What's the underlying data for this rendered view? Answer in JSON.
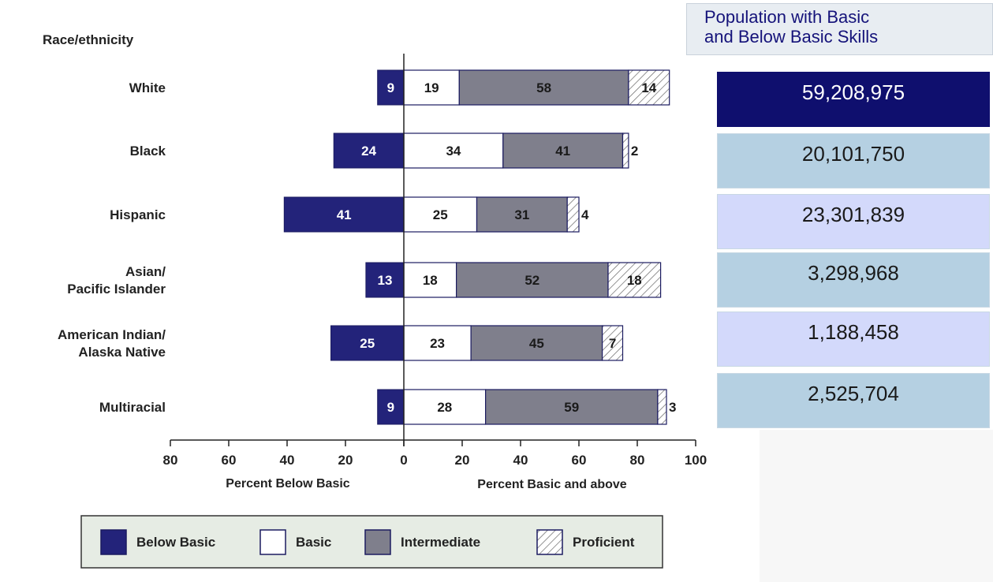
{
  "chart_data": {
    "type": "bar",
    "orientation": "horizontal-diverging",
    "category_header": "Race/ethnicity",
    "categories": [
      [
        "White"
      ],
      [
        "Black"
      ],
      [
        "Hispanic"
      ],
      [
        "Asian/",
        "Pacific Islander"
      ],
      [
        "American Indian/",
        "Alaska Native"
      ],
      [
        "Multiracial"
      ]
    ],
    "series": [
      {
        "name": "Below Basic",
        "values": [
          9,
          24,
          41,
          13,
          25,
          9
        ],
        "direction": "left",
        "color": "#23237a"
      },
      {
        "name": "Basic",
        "values": [
          19,
          34,
          25,
          18,
          23,
          28
        ],
        "direction": "right",
        "color": "#ffffff"
      },
      {
        "name": "Intermediate",
        "values": [
          58,
          41,
          31,
          52,
          45,
          59
        ],
        "direction": "right",
        "color": "#7f7f8c"
      },
      {
        "name": "Proficient",
        "values": [
          14,
          2,
          4,
          18,
          7,
          3
        ],
        "direction": "right",
        "color": "hatched"
      }
    ],
    "xlim": [
      -80,
      100
    ],
    "x_ticks": [
      {
        "value": -80,
        "label": "80"
      },
      {
        "value": -60,
        "label": "60"
      },
      {
        "value": -40,
        "label": "40"
      },
      {
        "value": -20,
        "label": "20"
      },
      {
        "value": 0,
        "label": "0"
      },
      {
        "value": 20,
        "label": "20"
      },
      {
        "value": 40,
        "label": "40"
      },
      {
        "value": 60,
        "label": "60"
      },
      {
        "value": 80,
        "label": "80"
      },
      {
        "value": 100,
        "label": "100"
      }
    ],
    "xlabel_left": "Percent Below Basic",
    "xlabel_right": "Percent Basic and above",
    "legend_position": "bottom-left",
    "grid": false
  },
  "side_panel": {
    "header_line1": "Population with Basic",
    "header_line2": "and Below Basic Skills",
    "values": [
      "59,208,975",
      "20,101,750",
      "23,301,839",
      "3,298,968",
      "1,188,458",
      "2,525,704"
    ],
    "box_colors": [
      "#0f0f6e",
      "#b5d0e2",
      "#d3d9fb",
      "#b5d0e2",
      "#d3d9fb",
      "#b5d0e2"
    ],
    "text_colors": [
      "#ffffff",
      "#1a1a1a",
      "#1a1a1a",
      "#1a1a1a",
      "#1a1a1a",
      "#1a1a1a"
    ]
  }
}
